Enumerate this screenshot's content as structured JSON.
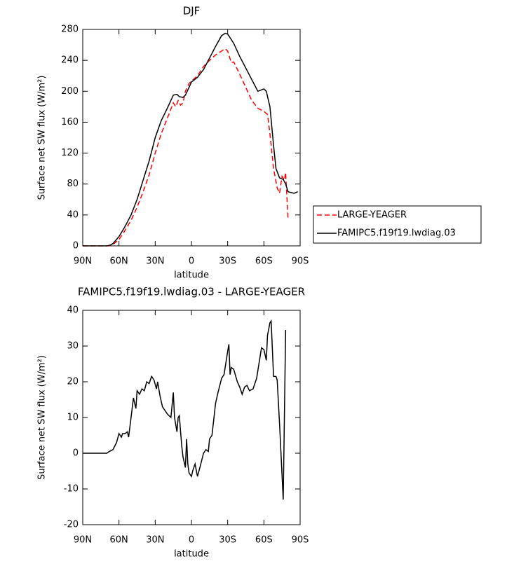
{
  "chart_data": [
    {
      "type": "line",
      "title": "DJF",
      "xlabel": "latitude",
      "ylabel": "Surface net SW flux (W/m²)",
      "xlim": [
        90,
        -90
      ],
      "xticks": [
        {
          "value": 90,
          "label": "90N"
        },
        {
          "value": 60,
          "label": "60N"
        },
        {
          "value": 30,
          "label": "30N"
        },
        0,
        {
          "value": -30,
          "label": "30S"
        },
        {
          "value": -60,
          "label": "60S"
        },
        {
          "value": -90,
          "label": "90S"
        }
      ],
      "ylim": [
        0,
        280
      ],
      "yticks": [
        0,
        40,
        80,
        120,
        160,
        200,
        240,
        280
      ],
      "legend": "right",
      "series": [
        {
          "name": "LARGE-YEAGER",
          "color": "#ff0000",
          "dashed": true,
          "x": [
            90,
            80,
            68,
            65,
            60,
            55,
            50,
            45,
            40,
            35,
            30,
            25,
            20,
            15,
            13,
            11,
            9,
            7,
            5,
            2,
            0,
            -5,
            -10,
            -15,
            -20,
            -25,
            -28,
            -30,
            -33,
            -35,
            -40,
            -45,
            -50,
            -55,
            -60,
            -63,
            -65,
            -68,
            -71,
            -73,
            -75,
            -77,
            -78,
            -80
          ],
          "values": [
            0,
            0,
            0,
            2,
            8,
            20,
            33,
            50,
            70,
            92,
            120,
            145,
            165,
            185,
            180,
            188,
            182,
            185,
            200,
            210,
            213,
            220,
            232,
            240,
            247,
            252,
            255,
            252,
            237,
            238,
            222,
            205,
            188,
            178,
            174,
            170,
            145,
            100,
            75,
            68,
            90,
            85,
            95,
            35
          ]
        },
        {
          "name": "FAMIPC5.f19f19.lwdiag.03",
          "color": "#000000",
          "dashed": false,
          "x": [
            90,
            80,
            70,
            67,
            65,
            60,
            55,
            50,
            45,
            40,
            35,
            30,
            25,
            20,
            15,
            12,
            10,
            7,
            5,
            2,
            0,
            -5,
            -10,
            -15,
            -20,
            -25,
            -28,
            -30,
            -35,
            -40,
            -45,
            -50,
            -55,
            -60,
            -62,
            -65,
            -68,
            -70,
            -73,
            -76,
            -78,
            -80,
            -85,
            -88
          ],
          "values": [
            0,
            0,
            0,
            1,
            3,
            12,
            25,
            40,
            60,
            85,
            110,
            140,
            162,
            178,
            195,
            196,
            193,
            192,
            195,
            205,
            212,
            218,
            228,
            243,
            258,
            272,
            275,
            274,
            262,
            245,
            230,
            215,
            200,
            203,
            200,
            180,
            130,
            100,
            88,
            86,
            80,
            70,
            68,
            70
          ]
        }
      ]
    },
    {
      "type": "line",
      "title": "FAMIPC5.f19f19.lwdiag.03 - LARGE-YEAGER",
      "xlabel": "latitude",
      "ylabel": "Surface net SW flux (W/m²)",
      "xlim": [
        90,
        -90
      ],
      "xticks": [
        {
          "value": 90,
          "label": "90N"
        },
        {
          "value": 60,
          "label": "60N"
        },
        {
          "value": 30,
          "label": "30N"
        },
        0,
        {
          "value": -30,
          "label": "30S"
        },
        {
          "value": -60,
          "label": "60S"
        },
        {
          "value": -90,
          "label": "90S"
        }
      ],
      "ylim": [
        -20,
        40
      ],
      "yticks": [
        -20,
        -10,
        0,
        10,
        20,
        30,
        40
      ],
      "series": [
        {
          "color": "#000000",
          "dashed": false,
          "x": [
            90,
            80,
            70,
            68,
            65,
            62,
            60,
            58,
            57,
            55,
            53,
            52,
            50,
            48,
            46,
            45,
            43,
            41,
            39,
            37,
            35,
            33,
            31,
            29,
            28,
            26,
            24,
            20,
            17,
            15,
            14,
            12,
            11,
            10,
            9,
            8,
            7,
            5,
            4,
            3,
            2,
            0,
            -1,
            -3,
            -5,
            -7,
            -10,
            -12,
            -14,
            -15,
            -17,
            -20,
            -22,
            -25,
            -27,
            -30,
            -31,
            -32,
            -33,
            -35,
            -38,
            -40,
            -42,
            -44,
            -46,
            -48,
            -51,
            -54,
            -58,
            -60,
            -62,
            -63,
            -65,
            -66,
            -68,
            -70,
            -71,
            -73,
            -76,
            -78
          ],
          "values": [
            0,
            0,
            0,
            0.5,
            1,
            3,
            5.5,
            4.5,
            5.5,
            5.5,
            6,
            4.5,
            10,
            15.5,
            12.5,
            17.5,
            16.5,
            18,
            17.5,
            20,
            19.5,
            21.5,
            20.5,
            18,
            20,
            16,
            13,
            11,
            10,
            17,
            10,
            6,
            10,
            10.5,
            6,
            2,
            -1,
            -4,
            4,
            -3,
            -5.5,
            -6.5,
            -5,
            -3,
            -6.5,
            -4,
            0,
            1,
            0.5,
            4,
            5,
            14,
            17,
            21,
            22,
            28.5,
            30.5,
            22,
            24,
            23.5,
            20,
            18.5,
            16.5,
            18.5,
            19,
            17.5,
            18,
            21,
            29.5,
            29,
            26,
            33,
            36.5,
            37,
            21.5,
            21.5,
            20.5,
            8,
            -13,
            34.5
          ]
        }
      ]
    }
  ]
}
